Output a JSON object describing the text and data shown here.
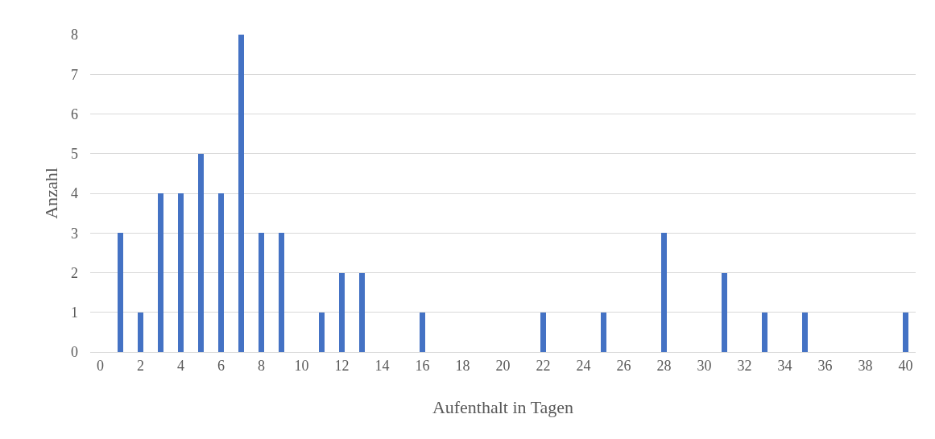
{
  "chart_data": {
    "type": "bar",
    "xlabel": "Aufenthalt in Tagen",
    "ylabel": "Anzahl",
    "x": [
      1,
      2,
      3,
      4,
      5,
      6,
      7,
      8,
      9,
      11,
      12,
      13,
      16,
      22,
      25,
      28,
      31,
      33,
      35,
      40
    ],
    "values": [
      3,
      1,
      4,
      4,
      5,
      4,
      8,
      3,
      3,
      1,
      2,
      2,
      1,
      1,
      1,
      3,
      2,
      1,
      1,
      1
    ],
    "color": "#4472c4",
    "xlim": [
      -0.5,
      40.5
    ],
    "xticks": [
      0,
      2,
      4,
      6,
      8,
      10,
      12,
      14,
      16,
      18,
      20,
      22,
      24,
      26,
      28,
      30,
      32,
      34,
      36,
      38,
      40
    ],
    "ylim": [
      0,
      8
    ],
    "yticks": [
      0,
      1,
      2,
      3,
      4,
      5,
      6,
      7,
      8
    ],
    "grid": "y"
  }
}
